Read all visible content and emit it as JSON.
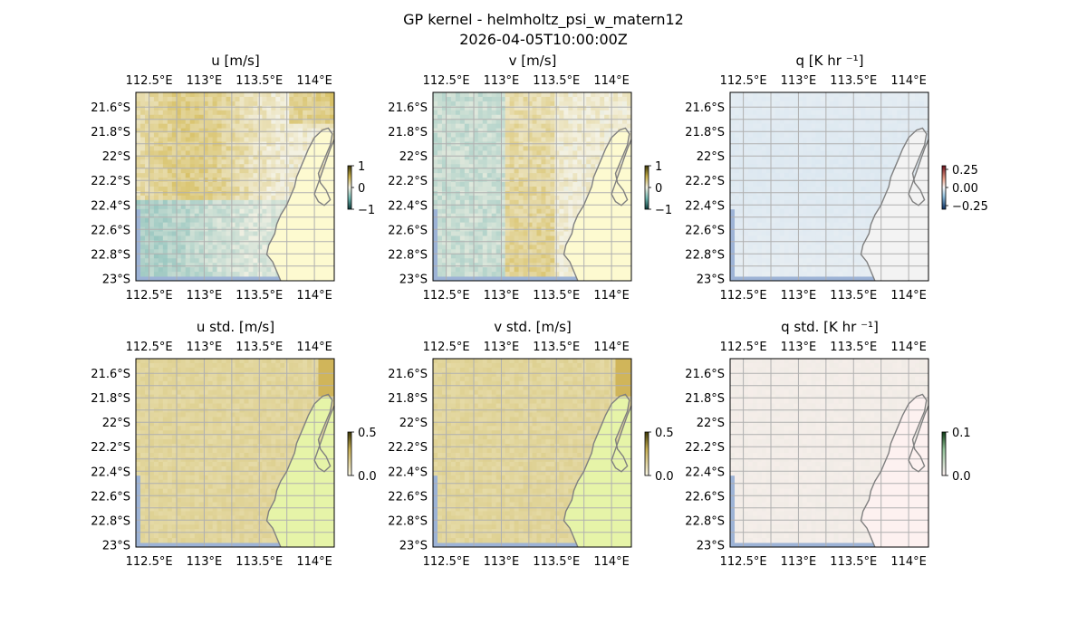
{
  "figure": {
    "title": "GP kernel - helmholtz_psi_w_matern12",
    "subtitle": "2026-04-05T10:00:00Z"
  },
  "chart_data": [
    {
      "type": "heatmap",
      "title": "u [m/s]",
      "colormap": "diverging teal-white-olive",
      "x_ticks": [
        "112.5°E",
        "113°E",
        "113.5°E",
        "114°E"
      ],
      "y_ticks": [
        "21.6°S",
        "21.8°S",
        "22°S",
        "22.2°S",
        "22.4°S",
        "22.6°S",
        "22.8°S",
        "23°S"
      ],
      "colorbar": {
        "ticks": [
          "1",
          "0",
          "−1"
        ],
        "range": [
          -1,
          1
        ]
      },
      "field": "u",
      "grid": true
    },
    {
      "type": "heatmap",
      "title": "v [m/s]",
      "colormap": "diverging teal-white-olive",
      "x_ticks": [
        "112.5°E",
        "113°E",
        "113.5°E",
        "114°E"
      ],
      "y_ticks": [
        "21.6°S",
        "21.8°S",
        "22°S",
        "22.2°S",
        "22.4°S",
        "22.6°S",
        "22.8°S",
        "23°S"
      ],
      "colorbar": {
        "ticks": [
          "1",
          "0",
          "−1"
        ],
        "range": [
          -1,
          1
        ]
      },
      "field": "v",
      "grid": true
    },
    {
      "type": "heatmap",
      "title": "q [K hr ⁻¹]",
      "colormap": "diverging blue-white-red",
      "x_ticks": [
        "112.5°E",
        "113°E",
        "113.5°E",
        "114°E"
      ],
      "y_ticks": [
        "21.6°S",
        "21.8°S",
        "22°S",
        "22.2°S",
        "22.4°S",
        "22.6°S",
        "22.8°S",
        "23°S"
      ],
      "colorbar": {
        "ticks": [
          "0.25",
          "0.00",
          "−0.25"
        ],
        "range": [
          -0.3,
          0.3
        ]
      },
      "field": "q",
      "grid": true
    },
    {
      "type": "heatmap",
      "title": "u std. [m/s]",
      "colormap": "sequential yellow-olive",
      "x_ticks": [
        "112.5°E",
        "113°E",
        "113.5°E",
        "114°E"
      ],
      "y_ticks": [
        "21.6°S",
        "21.8°S",
        "22°S",
        "22.2°S",
        "22.4°S",
        "22.6°S",
        "22.8°S",
        "23°S"
      ],
      "colorbar": {
        "ticks": [
          "0.5",
          "0.0"
        ],
        "range": [
          0,
          0.5
        ]
      },
      "field": "ustd",
      "grid": true
    },
    {
      "type": "heatmap",
      "title": "v std. [m/s]",
      "colormap": "sequential yellow-olive",
      "x_ticks": [
        "112.5°E",
        "113°E",
        "113.5°E",
        "114°E"
      ],
      "y_ticks": [
        "21.6°S",
        "21.8°S",
        "22°S",
        "22.2°S",
        "22.4°S",
        "22.6°S",
        "22.8°S",
        "23°S"
      ],
      "colorbar": {
        "ticks": [
          "0.5",
          "0.0"
        ],
        "range": [
          0,
          0.5
        ]
      },
      "field": "vstd",
      "grid": true
    },
    {
      "type": "heatmap",
      "title": "q std. [K hr ⁻¹]",
      "colormap": "sequential pink-green",
      "x_ticks": [
        "112.5°E",
        "113°E",
        "113.5°E",
        "114°E"
      ],
      "y_ticks": [
        "21.6°S",
        "21.8°S",
        "22°S",
        "22.2°S",
        "22.4°S",
        "22.6°S",
        "22.8°S",
        "23°S"
      ],
      "colorbar": {
        "ticks": [
          "0.1",
          "0.0"
        ],
        "range": [
          0,
          0.1
        ]
      },
      "field": "qstd",
      "grid": true
    }
  ]
}
